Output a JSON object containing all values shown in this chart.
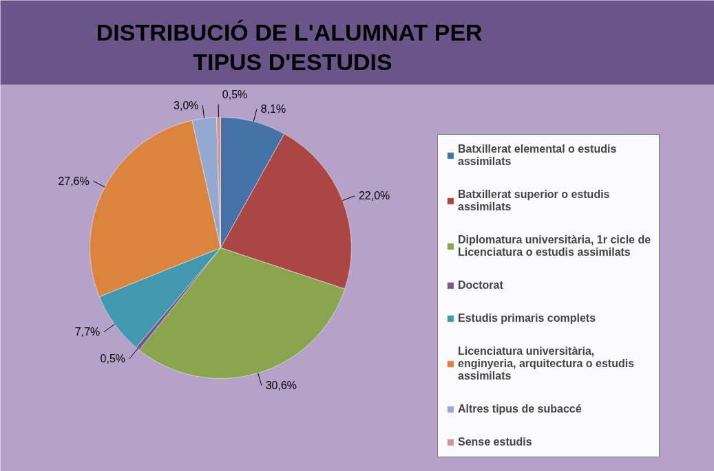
{
  "chart_data": {
    "type": "pie",
    "title": "DISTRIBUCIÓ DE  L'ALUMNAT PER TIPUS D'ESTUDIS",
    "categories": [
      "Batxillerat elemental o estudis assimilats",
      "Batxillerat superior o estudis assimilats",
      "Diplomatura universitària, 1r cicle de Licenciatura o estudis assimilats",
      "Doctorat",
      "Estudis primaris complets",
      "Licenciatura universitària, enginyeria, arquitectura o estudis assimilats",
      "Altres tipus de subaccé",
      "Sense estudis"
    ],
    "values": [
      8.1,
      22.0,
      30.6,
      0.5,
      7.7,
      27.6,
      3.0,
      0.5
    ],
    "value_labels": [
      "8,1%",
      "22,0%",
      "30,6%",
      "0,5%",
      "7,7%",
      "27,6%",
      "3,0%",
      "0,5%"
    ],
    "colors": [
      "#4572a7",
      "#aa4643",
      "#89a54e",
      "#71588f",
      "#4198af",
      "#db843d",
      "#93a9cf",
      "#d19392"
    ],
    "legend": "right"
  }
}
